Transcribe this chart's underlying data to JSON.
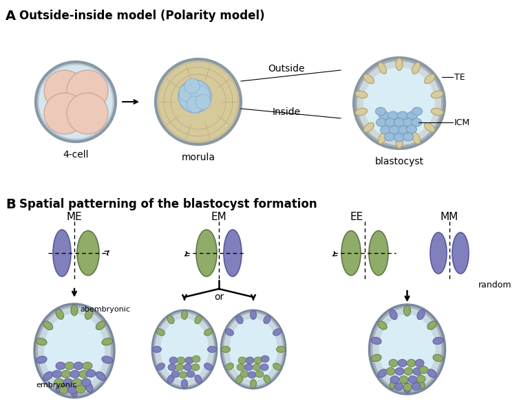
{
  "title_A": "Outside-inside model (Polarity model)",
  "title_B": "Spatial patterning of the blastocyst formation",
  "label_A": "A",
  "label_B": "B",
  "label_4cell": "4-cell",
  "label_morula": "morula",
  "label_blastocyst": "blastocyst",
  "label_outside": "Outside",
  "label_inside": "Inside",
  "label_TE": "TE",
  "label_ICM": "ICM",
  "label_ME": "ME",
  "label_EM": "EM",
  "label_EE": "EE",
  "label_MM": "MM",
  "label_abembryonic": "abembryonic",
  "label_embryonic": "embryonic",
  "label_or": "or",
  "label_random": "random",
  "color_salmon": "#ECC9B8",
  "color_morula_bg": "#D6C99A",
  "color_morula_outer": "#C8BF98",
  "color_icm_blue": "#AACCE0",
  "color_gray_shell": "#9EA8B0",
  "color_shell_inner": "#C8D0D8",
  "color_4cell_bg": "#C8DCE8",
  "color_te_beige": "#D8CC9C",
  "color_blasto_fluid": "#D8EDF5",
  "color_blasto_icm": "#9BBCDA",
  "color_purple": "#8080BC",
  "color_green": "#8FAC68",
  "color_purple_edge": "#5858A0",
  "color_green_edge": "#607848",
  "bg_color": "#FFFFFF"
}
